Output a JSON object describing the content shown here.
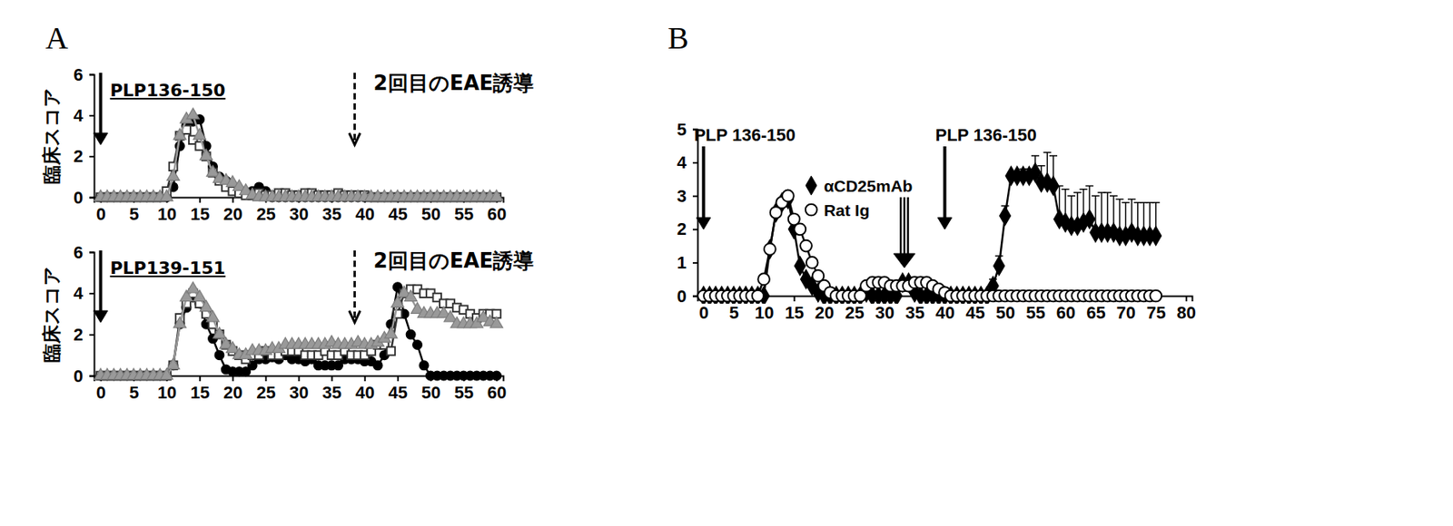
{
  "chart_data": [
    {
      "type": "line",
      "title": "A",
      "y_label": "臨床スコア",
      "x": [
        0,
        1,
        2,
        3,
        4,
        5,
        6,
        7,
        8,
        9,
        10,
        11,
        12,
        13,
        14,
        15,
        16,
        17,
        18,
        19,
        20,
        21,
        22,
        23,
        24,
        25,
        26,
        27,
        28,
        29,
        30,
        31,
        32,
        33,
        34,
        35,
        36,
        37,
        38,
        39,
        40,
        41,
        42,
        43,
        44,
        45,
        46,
        47,
        48,
        49,
        50,
        51,
        52,
        53,
        54,
        55,
        56,
        57,
        58,
        59,
        60
      ],
      "xlim": [
        -1,
        61
      ],
      "xticks": [
        0,
        5,
        10,
        15,
        20,
        25,
        30,
        35,
        40,
        45,
        50,
        55,
        60
      ],
      "ylim": [
        0,
        6
      ],
      "yticks": [
        0,
        2,
        4,
        6
      ],
      "annotations": [
        {
          "text": "PLP136-150",
          "x": 0,
          "line_style": "solid"
        },
        {
          "text": "2回目のEAE誘導",
          "x": 38.5,
          "line_style": "dashed"
        }
      ],
      "series": [
        {
          "color": "#000000",
          "marker": "circle",
          "values": [
            0,
            0,
            0,
            0,
            0,
            0,
            0,
            0,
            0,
            0,
            0,
            0.5,
            2.5,
            3.5,
            3.7,
            3.8,
            2.5,
            1.5,
            1.0,
            0.8,
            0.6,
            0.3,
            0.2,
            0.3,
            0.5,
            0.3,
            0,
            0,
            0,
            0,
            0,
            0,
            0,
            0,
            0,
            0,
            0,
            0,
            0,
            0,
            0,
            0,
            0,
            0,
            0,
            0,
            0,
            0,
            0,
            0,
            0,
            0,
            0,
            0,
            0,
            0,
            0,
            0,
            0,
            0,
            0
          ]
        },
        {
          "color": "#333333",
          "marker": "square-open",
          "values": [
            0,
            0,
            0,
            0,
            0,
            0,
            0,
            0,
            0,
            0,
            0.3,
            1.5,
            3.0,
            3.3,
            2.8,
            2.5,
            2.0,
            1.2,
            0.8,
            0.5,
            0.3,
            0.2,
            0.1,
            0.1,
            0.2,
            0.1,
            0.1,
            0.2,
            0.2,
            0.1,
            0.1,
            0.2,
            0.2,
            0.1,
            0.1,
            0.1,
            0.2,
            0.1,
            0.1,
            0.1,
            0.1,
            0,
            0,
            0,
            0,
            0,
            0,
            0,
            0,
            0,
            0,
            0,
            0,
            0,
            0,
            0,
            0,
            0,
            0,
            0,
            0
          ]
        },
        {
          "color": "#999999",
          "marker": "triangle",
          "values": [
            0,
            0,
            0,
            0,
            0,
            0,
            0,
            0,
            0,
            0,
            0,
            1.0,
            3.0,
            3.8,
            4.0,
            3.0,
            2.0,
            1.2,
            0.9,
            0.8,
            0.7,
            0.5,
            0.3,
            0.1,
            0,
            0,
            0,
            0,
            0,
            0,
            0,
            0,
            0,
            0,
            0,
            0,
            0,
            0,
            0,
            0,
            0,
            0,
            0,
            0,
            0,
            0,
            0,
            0,
            0,
            0,
            0,
            0,
            0,
            0,
            0,
            0,
            0,
            0,
            0,
            0,
            0
          ]
        }
      ]
    },
    {
      "type": "line",
      "y_label": "臨床スコア",
      "x": [
        0,
        1,
        2,
        3,
        4,
        5,
        6,
        7,
        8,
        9,
        10,
        11,
        12,
        13,
        14,
        15,
        16,
        17,
        18,
        19,
        20,
        21,
        22,
        23,
        24,
        25,
        26,
        27,
        28,
        29,
        30,
        31,
        32,
        33,
        34,
        35,
        36,
        37,
        38,
        39,
        40,
        41,
        42,
        43,
        44,
        45,
        46,
        47,
        48,
        49,
        50,
        51,
        52,
        53,
        54,
        55,
        56,
        57,
        58,
        59,
        60
      ],
      "xlim": [
        -1,
        61
      ],
      "xticks": [
        0,
        5,
        10,
        15,
        20,
        25,
        30,
        35,
        40,
        45,
        50,
        55,
        60
      ],
      "ylim": [
        0,
        6
      ],
      "yticks": [
        0,
        2,
        4,
        6
      ],
      "annotations": [
        {
          "text": "PLP139-151",
          "x": 0,
          "line_style": "solid"
        },
        {
          "text": "2回目のEAE誘導",
          "x": 38.5,
          "line_style": "dashed"
        }
      ],
      "series": [
        {
          "color": "#000000",
          "marker": "circle",
          "values": [
            0,
            0,
            0,
            0,
            0,
            0,
            0,
            0,
            0,
            0,
            0,
            0.5,
            2.5,
            3.3,
            3.8,
            3.5,
            2.5,
            1.8,
            1.0,
            0.3,
            0.2,
            0.2,
            0.2,
            0.5,
            0.8,
            0.8,
            0.9,
            0.8,
            1.0,
            0.8,
            0.8,
            0.7,
            0.8,
            0.5,
            0.5,
            0.5,
            0.5,
            0.8,
            0.8,
            0.8,
            0.7,
            0.7,
            0.5,
            1.0,
            2.5,
            4.3,
            3.0,
            2.0,
            1.5,
            0.5,
            0,
            0,
            0,
            0,
            0,
            0,
            0,
            0,
            0,
            0,
            0
          ]
        },
        {
          "color": "#333333",
          "marker": "square-open",
          "values": [
            0,
            0,
            0,
            0,
            0,
            0,
            0,
            0,
            0,
            0,
            0,
            0.5,
            2.8,
            3.5,
            4.0,
            3.5,
            3.0,
            2.5,
            2.0,
            1.5,
            1.2,
            1.0,
            0.8,
            1.0,
            1.0,
            1.2,
            1.0,
            1.0,
            1.2,
            1.2,
            1.2,
            1.0,
            1.0,
            1.0,
            1.2,
            1.0,
            1.0,
            1.2,
            1.0,
            1.0,
            1.0,
            1.2,
            1.5,
            1.5,
            1.2,
            3.0,
            4.0,
            4.2,
            4.2,
            4.0,
            4.0,
            3.8,
            3.5,
            3.5,
            3.3,
            3.2,
            3.0,
            2.8,
            3.0,
            3.0,
            3.0
          ]
        },
        {
          "color": "#999999",
          "marker": "triangle",
          "values": [
            0,
            0,
            0,
            0,
            0,
            0,
            0,
            0,
            0,
            0,
            0,
            0.5,
            2.5,
            3.8,
            4.2,
            3.8,
            3.3,
            2.8,
            2.0,
            1.5,
            1.3,
            1.0,
            1.0,
            1.2,
            1.2,
            1.2,
            1.3,
            1.3,
            1.5,
            1.5,
            1.5,
            1.5,
            1.5,
            1.5,
            1.5,
            1.6,
            1.5,
            1.5,
            1.5,
            1.6,
            1.5,
            1.5,
            1.6,
            1.8,
            2.0,
            3.5,
            4.0,
            3.8,
            3.2,
            3.0,
            3.0,
            3.0,
            3.0,
            2.8,
            2.5,
            2.5,
            2.5,
            2.5,
            2.8,
            2.6,
            2.5
          ]
        }
      ]
    },
    {
      "type": "line",
      "title": "B",
      "x": [
        0,
        1,
        2,
        3,
        4,
        5,
        6,
        7,
        8,
        9,
        10,
        11,
        12,
        13,
        14,
        15,
        16,
        17,
        18,
        19,
        20,
        21,
        22,
        23,
        24,
        25,
        26,
        27,
        28,
        29,
        30,
        31,
        32,
        33,
        34,
        35,
        36,
        37,
        38,
        39,
        40,
        41,
        42,
        43,
        44,
        45,
        46,
        47,
        48,
        49,
        50,
        51,
        52,
        53,
        54,
        55,
        56,
        57,
        58,
        59,
        60,
        61,
        62,
        63,
        64,
        65,
        66,
        67,
        68,
        69,
        70,
        71,
        72,
        73,
        74,
        75
      ],
      "xlim": [
        -1,
        81
      ],
      "xticks": [
        0,
        5,
        10,
        15,
        20,
        25,
        30,
        35,
        40,
        45,
        50,
        55,
        60,
        65,
        70,
        75,
        80
      ],
      "ylim": [
        0,
        5
      ],
      "yticks": [
        0,
        1,
        2,
        3,
        4,
        5
      ],
      "legend": "top",
      "annotations": [
        {
          "text": "PLP 136-150",
          "x": 0,
          "line_style": "solid"
        },
        {
          "text": "PLP 136-150",
          "x": 40,
          "line_style": "solid"
        }
      ],
      "treatment_days": [
        32.7,
        33.3,
        33.9
      ],
      "series": [
        {
          "name": "αCD25mAb",
          "color": "#000000",
          "marker": "diamond",
          "values": [
            0,
            0,
            0,
            0,
            0,
            0,
            0,
            0,
            0,
            0,
            0,
            1.4,
            2.5,
            2.8,
            2.9,
            2.0,
            0.9,
            0.5,
            0.3,
            0.1,
            0,
            0,
            0,
            0,
            0,
            0,
            0,
            0.1,
            0,
            0,
            0,
            0,
            0,
            0.4,
            0.4,
            0.1,
            0,
            0,
            0,
            0,
            0,
            0,
            0,
            0,
            0,
            0,
            0,
            0,
            0.3,
            0.9,
            2.4,
            3.6,
            3.6,
            3.6,
            3.6,
            3.7,
            3.4,
            3.4,
            3.3,
            2.3,
            2.2,
            2.1,
            2.1,
            2.2,
            2.3,
            1.9,
            1.9,
            1.9,
            1.9,
            1.8,
            1.8,
            1.9,
            1.8,
            1.8,
            1.8,
            1.8
          ],
          "errors": [
            0,
            0,
            0,
            0,
            0,
            0,
            0,
            0,
            0,
            0,
            0,
            0,
            0,
            0,
            0,
            0,
            0,
            0,
            0,
            0,
            0,
            0,
            0,
            0,
            0,
            0,
            0,
            0,
            0,
            0,
            0,
            0,
            0,
            0,
            0,
            0,
            0,
            0,
            0,
            0,
            0,
            0,
            0,
            0,
            0,
            0,
            0,
            0,
            0.2,
            0.3,
            0.3,
            0.1,
            0.1,
            0.2,
            0.2,
            0.5,
            0.5,
            0.9,
            0.9,
            1.0,
            1.0,
            0.9,
            1.0,
            1.0,
            1.0,
            1.1,
            1.2,
            1.2,
            1.1,
            1.1,
            1.0,
            1.0,
            1.0,
            1.0,
            1.0,
            1.0
          ]
        },
        {
          "name": "Rat Ig",
          "color": "#000000",
          "marker": "circle-open",
          "values": [
            0,
            0,
            0,
            0,
            0,
            0,
            0,
            0,
            0,
            0,
            0.5,
            1.4,
            2.5,
            2.8,
            3.0,
            2.3,
            2.0,
            1.5,
            1.0,
            0.6,
            0.3,
            0.1,
            0,
            0,
            0,
            0,
            0,
            0.3,
            0.4,
            0.4,
            0.4,
            0.3,
            0.3,
            0.3,
            0.3,
            0.4,
            0.4,
            0.4,
            0.3,
            0.2,
            0.1,
            0,
            0,
            0,
            0,
            0,
            0,
            0,
            0,
            0,
            0,
            0,
            0,
            0,
            0,
            0,
            0,
            0,
            0,
            0,
            0,
            0,
            0,
            0,
            0,
            0,
            0,
            0,
            0,
            0,
            0,
            0,
            0,
            0,
            0,
            0
          ]
        }
      ]
    }
  ]
}
